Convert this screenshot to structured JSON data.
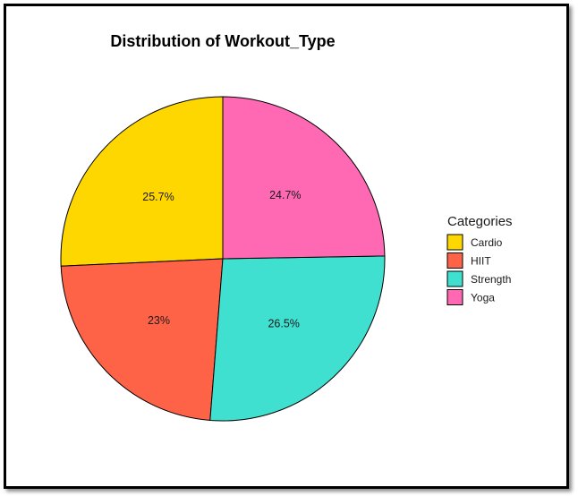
{
  "chart_data": {
    "type": "pie",
    "title": "Distribution of Workout_Type",
    "legend_title": "Categories",
    "legend_position": "right",
    "slices": [
      {
        "name": "Cardio",
        "value": 25.7,
        "label": "25.7%",
        "color": "#FFD700"
      },
      {
        "name": "HIIT",
        "value": 23.0,
        "label": "23%",
        "color": "#FF6347"
      },
      {
        "name": "Strength",
        "value": 26.5,
        "label": "26.5%",
        "color": "#40E0D0"
      },
      {
        "name": "Yoga",
        "value": 24.7,
        "label": "24.7%",
        "color": "#FF69B4"
      }
    ]
  }
}
